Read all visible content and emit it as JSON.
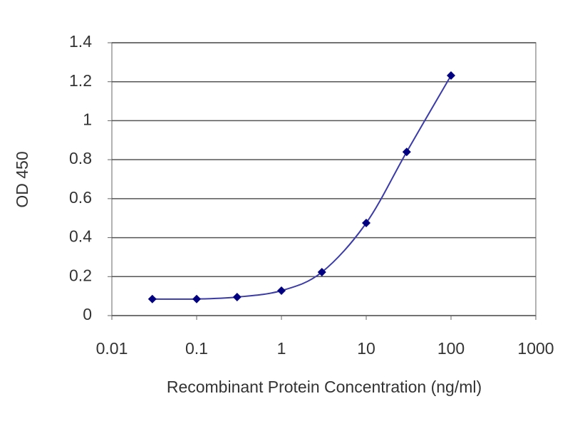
{
  "chart_data": {
    "type": "scatter",
    "x_label": "Recombinant Protein Concentration (ng/ml)",
    "y_label": "OD 450",
    "x": [
      0.03,
      0.1,
      0.3,
      1,
      3,
      10,
      30,
      100
    ],
    "values": [
      0.085,
      0.085,
      0.095,
      0.128,
      0.223,
      0.475,
      0.84,
      1.232
    ],
    "color": "#000080",
    "line_color": "#3a3aa8",
    "fit_line": true,
    "xscale": "log",
    "xlim": [
      0.01,
      1000
    ],
    "xticks": [
      0.01,
      0.1,
      1,
      10,
      100,
      1000
    ],
    "ylim": [
      0,
      1.4
    ],
    "yticks": [
      0,
      0.2,
      0.4,
      0.6,
      0.8,
      1,
      1.2,
      1.4
    ],
    "grid": true
  }
}
